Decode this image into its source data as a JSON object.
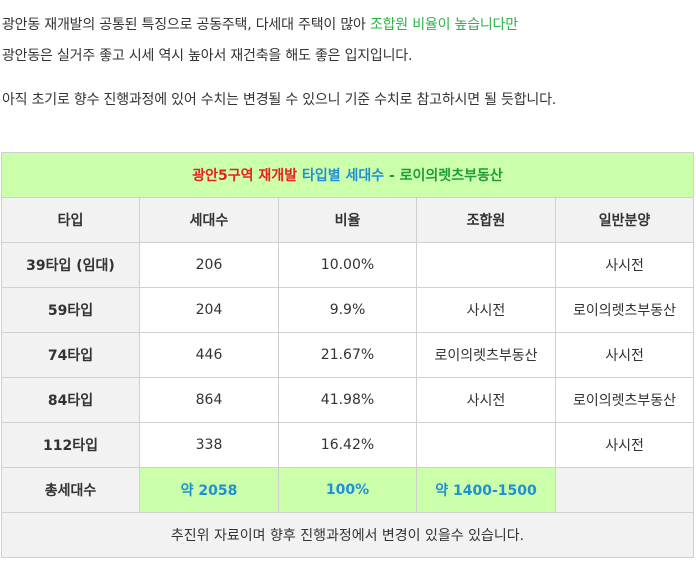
{
  "intro": {
    "line1_main": "광안동 재개발의 공통된 특징으로 공동주택, 다세대 주택이 많아 ",
    "line1_highlight": "조합원 비율이 높습니다만",
    "line2": "광안동은 실거주 좋고 시세 역시 높아서 재건축을 해도 좋은 입지입니다.",
    "line3": "아직 초기로 향수 진행과정에 있어 수치는 변경될 수 있으니 기준 수치로 참고하시면 될 듯합니다."
  },
  "table": {
    "title_part1": "광안5구역 재개발",
    "title_part2": "타입별 세대수",
    "title_part3": "- 로이의렛츠부동산",
    "headers": [
      "타입",
      "세대수",
      "비율",
      "조합원",
      "일반분양"
    ],
    "rows": [
      {
        "type": "39타입 (임대)",
        "units": "206",
        "ratio": "10.00%",
        "member": "",
        "general": "사시전"
      },
      {
        "type": "59타입",
        "units": "204",
        "ratio": "9.9%",
        "member": "사시전",
        "general": "로이의렛츠부동산"
      },
      {
        "type": "74타입",
        "units": "446",
        "ratio": "21.67%",
        "member": "로이의렛츠부동산",
        "general": "사시전"
      },
      {
        "type": "84타입",
        "units": "864",
        "ratio": "41.98%",
        "member": "사시전",
        "general": "로이의렛츠부동산"
      },
      {
        "type": "112타입",
        "units": "338",
        "ratio": "16.42%",
        "member": "",
        "general": "사시전"
      }
    ],
    "total": {
      "label": "총세대수",
      "units": "약 2058",
      "ratio": "100%",
      "member": "약 1400-1500",
      "general": ""
    },
    "note": "추진위 자료이며 향후 진행과정에서 변경이 있을수 있습니다."
  },
  "colors": {
    "highlight_green": "#2cb34a",
    "header_blue": "#1f8fd6",
    "title_red": "#e52222",
    "title_bg": "#ccffaa",
    "header_bg": "#f2f2f2"
  }
}
